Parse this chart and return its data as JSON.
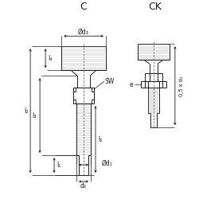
{
  "bg_color": "#ffffff",
  "line_color": "#1a1a1a",
  "dim_color": "#1a1a1a",
  "hatch_color": "#999999",
  "title_C": "C",
  "title_CK": "CK",
  "label_d3": "Ød₃",
  "label_d1": "Ød₁",
  "label_d2": "d₂",
  "label_l2": "l₂",
  "label_l4": "l₄",
  "label_l3": "l₃",
  "label_l1": "l₁",
  "label_l5": "l₅",
  "label_SW": "SW",
  "label_e": "e",
  "label_05d2": "0,5 x d₂"
}
